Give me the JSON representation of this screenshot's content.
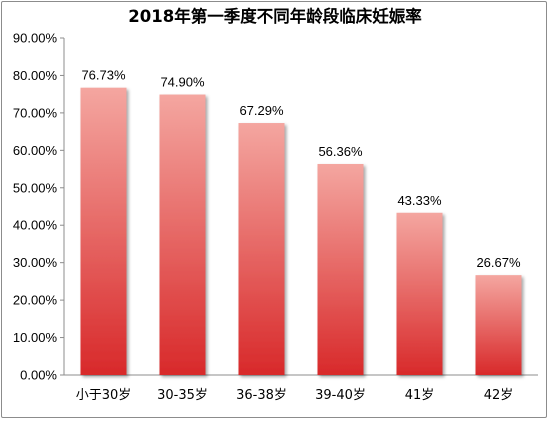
{
  "chart_data": {
    "type": "bar",
    "title": "2018年第一季度不同年龄段临床妊娠率",
    "categories": [
      "小于30岁",
      "30-35岁",
      "36-38岁",
      "39-40岁",
      "41岁",
      "42岁"
    ],
    "values": [
      76.73,
      74.9,
      67.29,
      56.36,
      43.33,
      26.67
    ],
    "data_labels": [
      "76.73%",
      "74.90%",
      "67.29%",
      "56.36%",
      "43.33%",
      "26.67%"
    ],
    "ylim": [
      0,
      90
    ],
    "ytick_labels": [
      "0.00%",
      "10.00%",
      "20.00%",
      "30.00%",
      "40.00%",
      "50.00%",
      "60.00%",
      "70.00%",
      "80.00%",
      "90.00%"
    ],
    "grid": false,
    "legend": "none",
    "bar_color_top": "#f4a6a0",
    "bar_color_bottom": "#d8292a"
  }
}
